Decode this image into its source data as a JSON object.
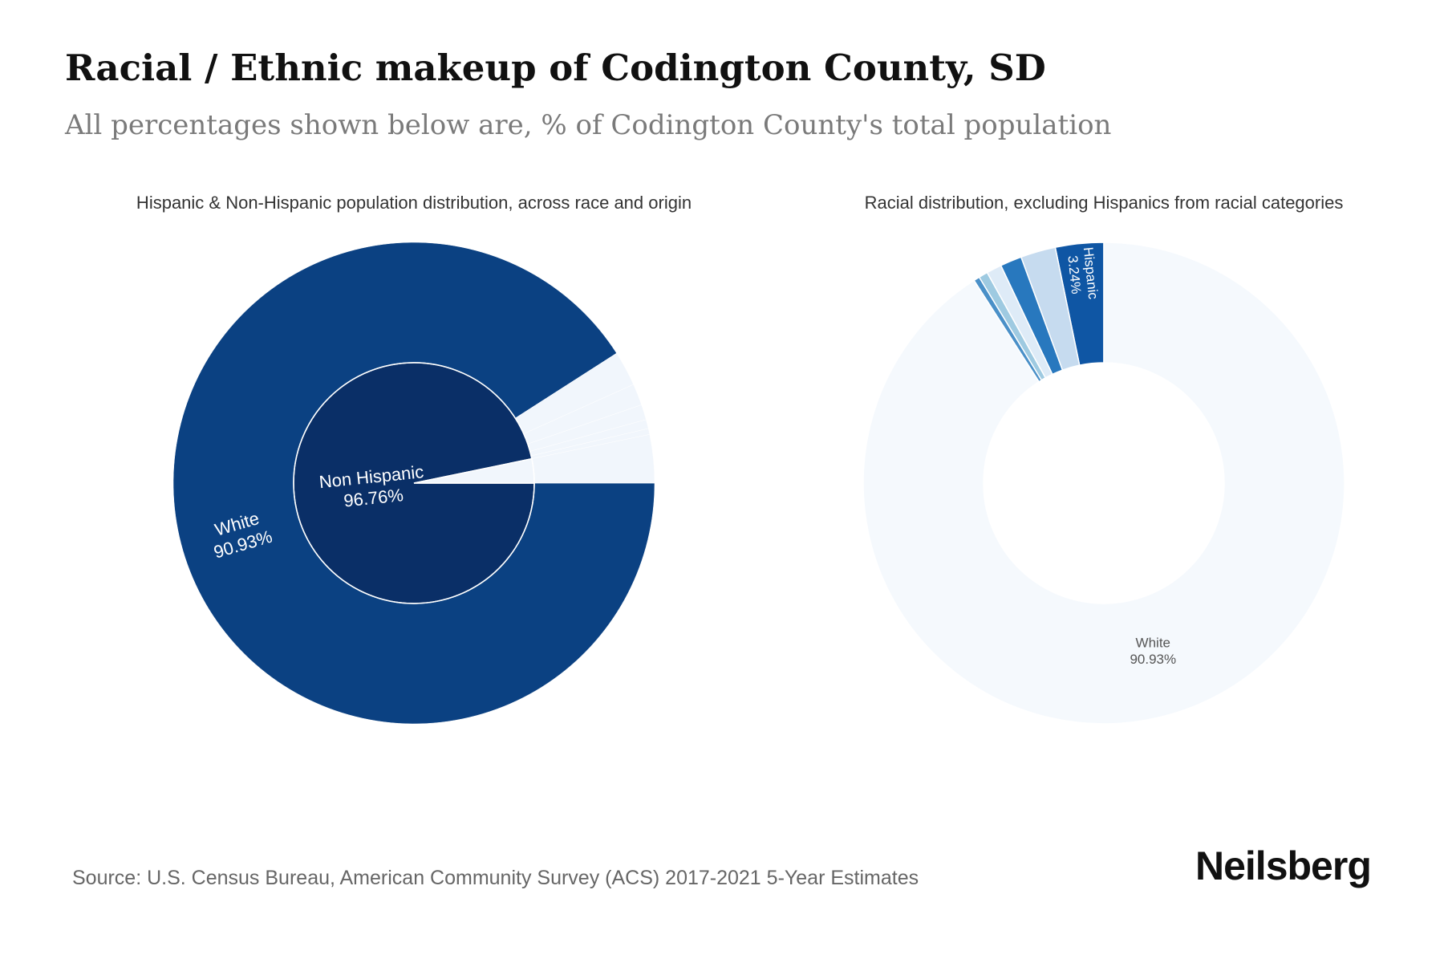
{
  "title": "Racial / Ethnic makeup of Codington County, SD",
  "subtitle": "All percentages shown below are, % of Codington County's total population",
  "source": "Source: U.S. Census Bureau, American Community Survey (ACS) 2017-2021 5-Year Estimates",
  "brand": "Neilsberg",
  "colors": {
    "outer_white": "#0b4182",
    "inner_non_hispanic": "#0a2f67",
    "minor_slices": "#f1f6fc",
    "donut_white": "#f5f9fd",
    "donut_hispanic": "#0f56a4",
    "donut_light": "#c6dbef",
    "donut_mid": "#2878be",
    "donut_pale": "#deebf7",
    "donut_sky": "#9ecae1",
    "donut_steel": "#4a90c8"
  },
  "chart_data": [
    {
      "type": "pie",
      "title": "Hispanic & Non-Hispanic population distribution, across race and origin",
      "inner": {
        "slices": [
          {
            "label": "Non Hispanic",
            "value": 96.76,
            "value_label": "96.76%",
            "color": "#0a2f67"
          },
          {
            "label": "",
            "value": 3.24,
            "color": "#f1f6fc"
          }
        ]
      },
      "outer": {
        "slices": [
          {
            "label": "White",
            "value": 90.93,
            "value_label": "90.93%",
            "color": "#0b4182"
          },
          {
            "label": "",
            "value": 2.35,
            "color": "#f1f6fc"
          },
          {
            "label": "",
            "value": 1.45,
            "color": "#f1f6fc"
          },
          {
            "label": "",
            "value": 1.02,
            "color": "#f1f6fc"
          },
          {
            "label": "",
            "value": 0.61,
            "color": "#f1f6fc"
          },
          {
            "label": "",
            "value": 0.4,
            "color": "#f1f6fc"
          },
          {
            "label": "",
            "value": 3.24,
            "color": "#f1f6fc"
          }
        ]
      }
    },
    {
      "type": "pie",
      "title": "Racial distribution, excluding Hispanics from racial categories",
      "slices": [
        {
          "label": "Hispanic",
          "value": 3.24,
          "value_label": "3.24%",
          "color": "#0f56a4"
        },
        {
          "label": "",
          "value": 2.35,
          "color": "#c6dbef"
        },
        {
          "label": "",
          "value": 1.45,
          "color": "#2878be"
        },
        {
          "label": "",
          "value": 1.02,
          "color": "#deebf7"
        },
        {
          "label": "",
          "value": 0.61,
          "color": "#9ecae1"
        },
        {
          "label": "",
          "value": 0.4,
          "color": "#4a90c8"
        },
        {
          "label": "White",
          "value": 90.93,
          "value_label": "90.93%",
          "color": "#f5f9fd"
        }
      ]
    }
  ]
}
